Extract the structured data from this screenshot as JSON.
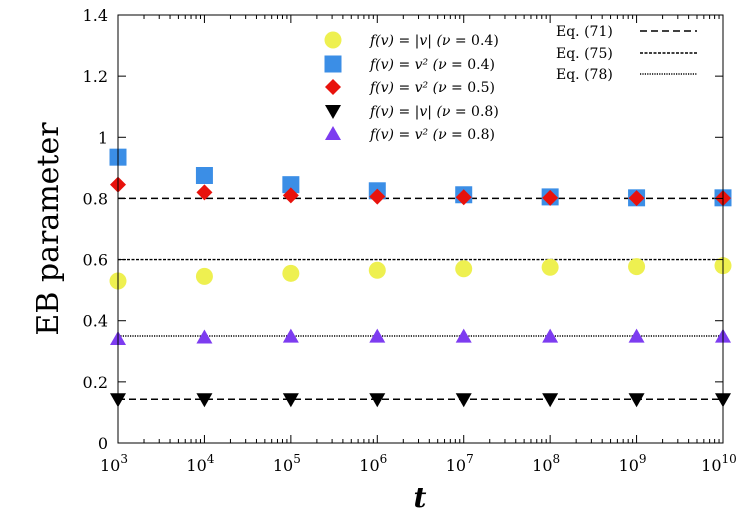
{
  "chart_data": {
    "type": "scatter",
    "title": "",
    "xlabel": "t",
    "ylabel": "EB parameter",
    "xscale": "log10",
    "xlim": [
      1000,
      10000000000
    ],
    "ylim": [
      0,
      1.4
    ],
    "x_ticks": [
      {
        "value": 1000,
        "base": "10",
        "exp": "3"
      },
      {
        "value": 10000,
        "base": "10",
        "exp": "4"
      },
      {
        "value": 100000,
        "base": "10",
        "exp": "5"
      },
      {
        "value": 1000000,
        "base": "10",
        "exp": "6"
      },
      {
        "value": 10000000,
        "base": "10",
        "exp": "7"
      },
      {
        "value": 100000000,
        "base": "10",
        "exp": "8"
      },
      {
        "value": 1000000000,
        "base": "10",
        "exp": "9"
      },
      {
        "value": 10000000000,
        "base": "10",
        "exp": "10"
      }
    ],
    "y_ticks": [
      {
        "value": 0,
        "label": "0"
      },
      {
        "value": 0.2,
        "label": "0.2"
      },
      {
        "value": 0.4,
        "label": "0.4"
      },
      {
        "value": 0.6,
        "label": "0.6"
      },
      {
        "value": 0.8,
        "label": "0.8"
      },
      {
        "value": 1.0,
        "label": "1"
      },
      {
        "value": 1.2,
        "label": "1.2"
      },
      {
        "value": 1.4,
        "label": "1.4"
      }
    ],
    "x": [
      1000,
      10000,
      100000,
      1000000,
      10000000,
      100000000,
      1000000000,
      10000000000
    ],
    "series": [
      {
        "name": "f(v) = |v| (ν = 0.4)",
        "fn": "|v|",
        "nu": "0.4",
        "marker": "circle",
        "color": "#eef050",
        "values": [
          0.53,
          0.545,
          0.555,
          0.565,
          0.57,
          0.575,
          0.577,
          0.58
        ]
      },
      {
        "name": "f(v) = v^2 (ν = 0.4)",
        "fn": "v²",
        "nu": "0.4",
        "marker": "square",
        "color": "#3b8ee6",
        "values": [
          0.935,
          0.875,
          0.845,
          0.825,
          0.812,
          0.805,
          0.802,
          0.802
        ]
      },
      {
        "name": "f(v) = v^2 (ν = 0.5)",
        "fn": "v²",
        "nu": "0.5",
        "marker": "diamond",
        "color": "#e8120c",
        "values": [
          0.845,
          0.82,
          0.81,
          0.806,
          0.804,
          0.802,
          0.801,
          0.801
        ]
      },
      {
        "name": "f(v) = |v| (ν = 0.8)",
        "fn": "|v|",
        "nu": "0.8",
        "marker": "triangle-down",
        "color": "#000000",
        "values": [
          0.143,
          0.143,
          0.143,
          0.143,
          0.143,
          0.143,
          0.143,
          0.143
        ]
      },
      {
        "name": "f(v) = v^2 (ν = 0.8)",
        "fn": "v²",
        "nu": "0.8",
        "marker": "triangle-up",
        "color": "#7d3cf0",
        "values": [
          0.34,
          0.345,
          0.348,
          0.348,
          0.348,
          0.348,
          0.348,
          0.348
        ]
      }
    ],
    "reference_lines": [
      {
        "name": "Eq. (71)",
        "style": "dashed",
        "values": [
          0.8,
          0.143
        ]
      },
      {
        "name": "Eq. (75)",
        "style": "dense-dashed",
        "values": [
          0.6
        ]
      },
      {
        "name": "Eq. (78)",
        "style": "dotted",
        "values": [
          0.35
        ]
      }
    ],
    "legend_position": "top"
  }
}
